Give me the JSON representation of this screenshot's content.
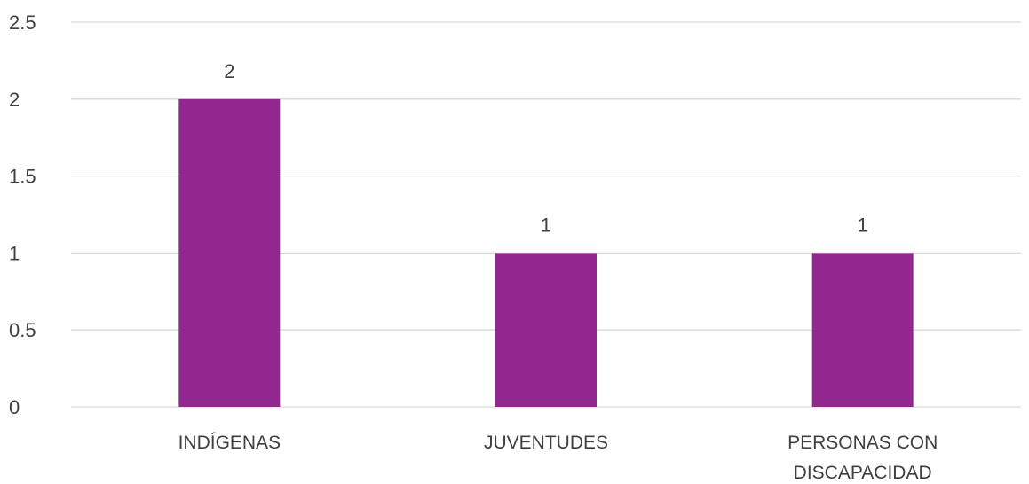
{
  "chart_data": {
    "type": "bar",
    "categories": [
      [
        "INDÍGENAS"
      ],
      [
        "JUVENTUDES"
      ],
      [
        "PERSONAS CON",
        "DISCAPACIDAD"
      ]
    ],
    "values": [
      2,
      1,
      1
    ],
    "data_labels": [
      "2",
      "1",
      "1"
    ],
    "ylim": [
      0,
      2.5
    ],
    "yticks": [
      0,
      0.5,
      1,
      1.5,
      2,
      2.5
    ],
    "ytick_labels": [
      "0",
      "0.5",
      "1",
      "1.5",
      "2",
      "2.5"
    ],
    "grid": true,
    "bar_color": "#92278f"
  }
}
